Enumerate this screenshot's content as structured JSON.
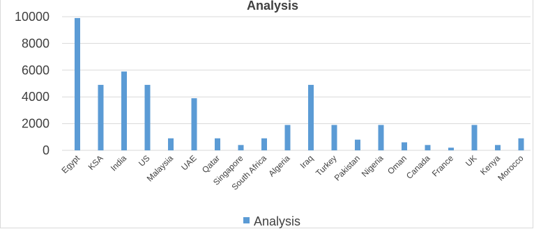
{
  "chart_data": {
    "type": "bar",
    "title": "Analysis",
    "categories": [
      "Egypt",
      "KSA",
      "India",
      "US",
      "Malaysia",
      "UAE",
      "Qatar",
      "Singapore",
      "South Africa",
      "Algeria",
      "Iraq",
      "Turkey",
      "Pakistan",
      "Nigeria",
      "Oman",
      "Canada",
      "France",
      "UK",
      "Kenya",
      "Morocco"
    ],
    "series": [
      {
        "name": "Analysis",
        "color": "#5b9bd5",
        "values": [
          9900,
          4900,
          5900,
          4900,
          900,
          3900,
          900,
          400,
          900,
          1900,
          4900,
          1900,
          800,
          1900,
          600,
          400,
          200,
          1900,
          400,
          900
        ]
      }
    ],
    "yticks": [
      "10000",
      "8000",
      "6000",
      "4000",
      "2000",
      "0"
    ],
    "ylim": [
      0,
      10000
    ],
    "grid": true,
    "gridline_color": "#d9d9d9",
    "legend_position": "bottom"
  }
}
